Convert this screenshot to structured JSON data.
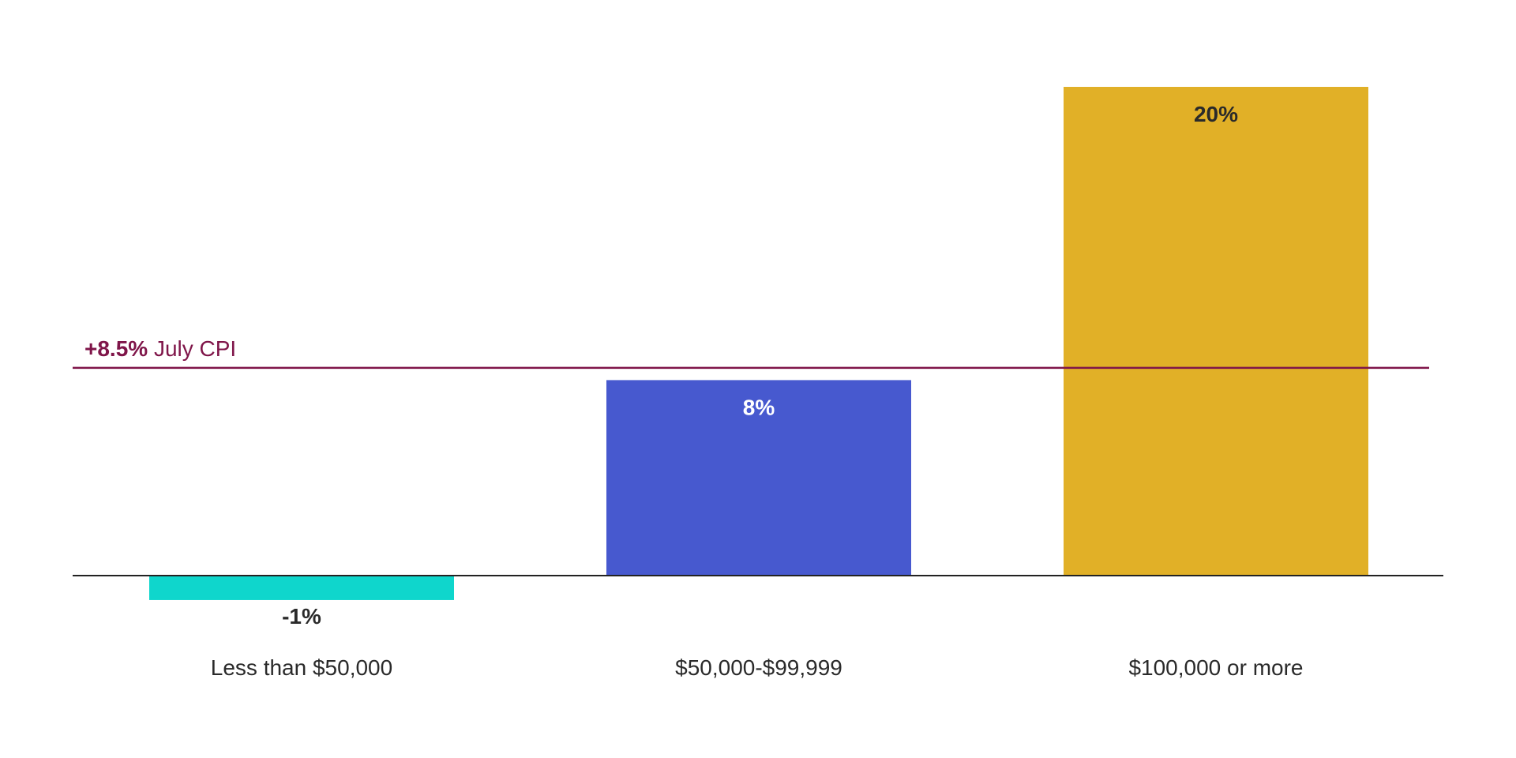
{
  "chart_data": {
    "type": "bar",
    "categories": [
      "Less than $50,000",
      "$50,000-$99,999",
      "$100,000 or more"
    ],
    "values": [
      -1,
      8,
      20
    ],
    "value_labels": [
      "-1%",
      "8%",
      "20%"
    ],
    "colors": [
      "#0fd6cc",
      "#4759cf",
      "#e1b027"
    ],
    "label_colors": [
      "#2a2a2a",
      "#ffffff",
      "#2a2a2a"
    ],
    "reference_line": {
      "value": 8.5,
      "label_bold": "+8.5%",
      "label_rest": " July CPI",
      "color": "#7f1549"
    },
    "title": "",
    "xlabel": "",
    "ylabel": "",
    "grid": false
  }
}
